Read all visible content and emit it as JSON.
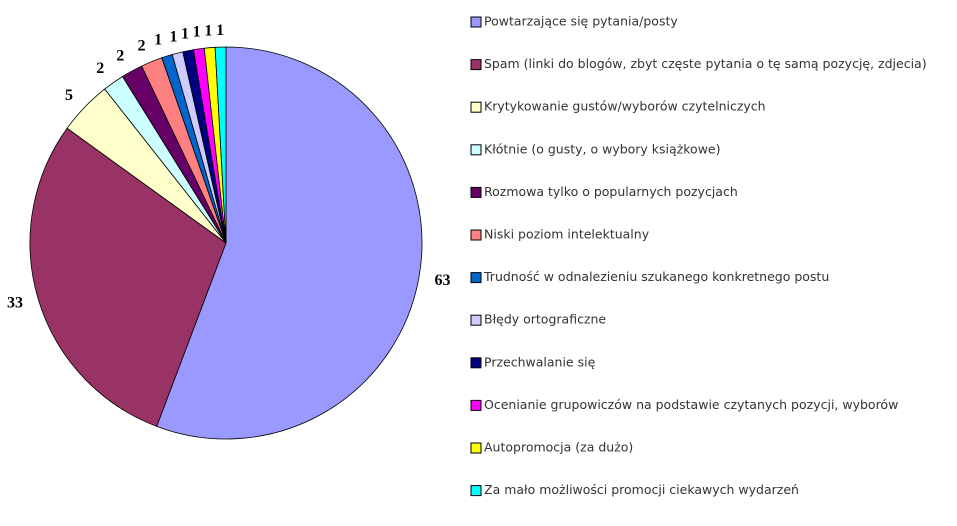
{
  "chart_data": {
    "type": "pie",
    "categories": [
      "Powtarzające się pytania/posty",
      "Spam (linki do blogów, zbyt częste pytania o tę samą pozycję, zdjecia)",
      "Krytykowanie gustów/wyborów czytelniczych",
      "Kłótnie (o gusty, o wybory książkowe)",
      "Rozmowa tylko o popularnych pozycjach",
      "Niski poziom intelektualny",
      "Trudność w odnalezieniu szukanego konkretnego postu",
      "Błędy ortograficzne",
      "Przechwalanie się",
      "Ocenianie grupowiczów na podstawie czytanych pozycji, wyborów",
      "Autopromocja (za dużo)",
      "Za mało możliwości promocji ciekawych wydarzeń"
    ],
    "values": [
      63,
      33,
      5,
      2,
      2,
      2,
      1,
      1,
      1,
      1,
      1,
      1
    ],
    "colors": [
      "#9999ff",
      "#993366",
      "#ffffcc",
      "#ccffff",
      "#660066",
      "#ff8080",
      "#0066cc",
      "#ccccff",
      "#000080",
      "#ff00ff",
      "#ffff00",
      "#00ffff"
    ],
    "legend": "right"
  }
}
